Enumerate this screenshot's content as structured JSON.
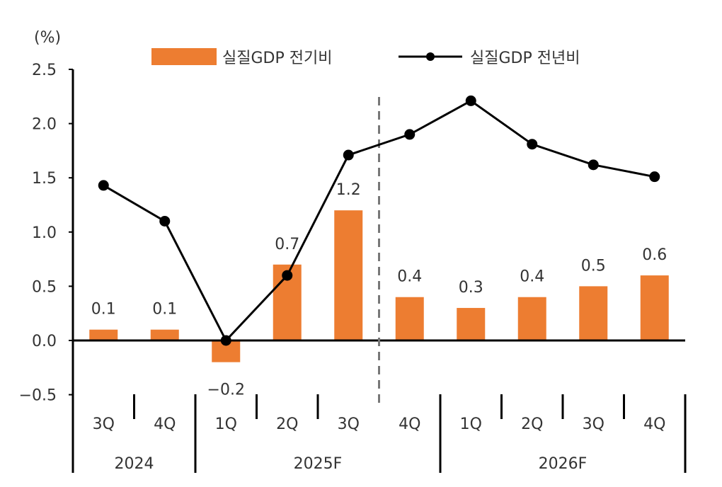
{
  "chart_data": {
    "type": "bar+line",
    "unit_label": "(%)",
    "categories": [
      "3Q",
      "4Q",
      "1Q",
      "2Q",
      "3Q",
      "4Q",
      "1Q",
      "2Q",
      "3Q",
      "4Q"
    ],
    "year_groups": [
      {
        "label": "2024",
        "quarters": 2
      },
      {
        "label": "2025F",
        "quarters": 4
      },
      {
        "label": "2026F",
        "quarters": 4
      }
    ],
    "series": [
      {
        "name": "실질GDP 전기비",
        "type": "bar",
        "color": "#ED7D31",
        "values": [
          0.1,
          0.1,
          -0.2,
          0.7,
          1.2,
          0.4,
          0.3,
          0.4,
          0.5,
          0.6
        ],
        "data_labels": [
          "0.1",
          "0.1",
          "-0.2",
          "0.7",
          "1.2",
          "0.4",
          "0.3",
          "0.4",
          "0.5",
          "0.6"
        ]
      },
      {
        "name": "실질GDP 전년비",
        "type": "line",
        "color": "#000000",
        "values": [
          1.43,
          1.1,
          0.0,
          0.6,
          1.71,
          1.9,
          2.21,
          1.81,
          1.62,
          1.51
        ]
      }
    ],
    "ylim": [
      -0.5,
      2.5
    ],
    "yticks": [
      "-0.5",
      "0.0",
      "0.5",
      "1.0",
      "1.5",
      "2.0",
      "2.5"
    ],
    "forecast_divider_after_index": 4,
    "legend_position": "top",
    "grid": false
  }
}
